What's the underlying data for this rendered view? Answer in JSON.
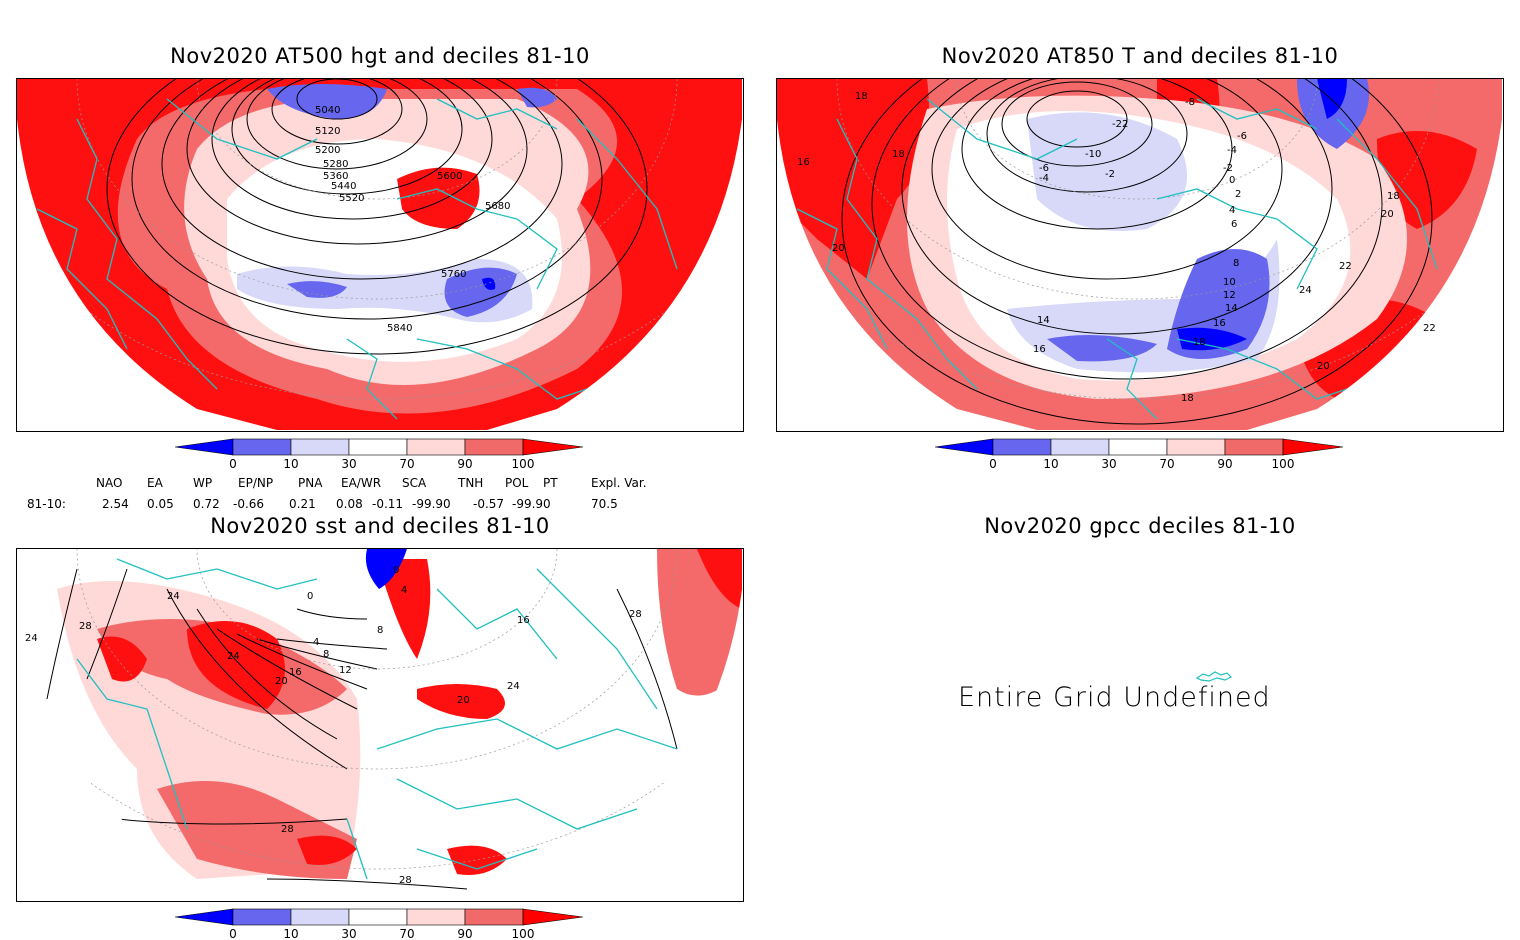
{
  "panels": [
    {
      "title": "Nov2020 AT500 hgt and deciles 81-10",
      "contour_labels": [
        "5040",
        "5120",
        "5200",
        "5280",
        "5360",
        "5440",
        "5520",
        "5600",
        "5680",
        "5760",
        "5840"
      ]
    },
    {
      "title": "Nov2020 AT850 T and deciles 81-10",
      "contour_labels": [
        "18",
        "18",
        "16",
        "20",
        "-22",
        "-10",
        "-6",
        "-4",
        "-2",
        "-8",
        "-6",
        "-4",
        "-2",
        "0",
        "2",
        "4",
        "6",
        "8",
        "10",
        "12",
        "14",
        "16",
        "18",
        "14",
        "16",
        "18",
        "20",
        "22",
        "24",
        "22",
        "20",
        "18"
      ]
    },
    {
      "title": "Nov2020 sst and deciles 81-10",
      "contour_labels": [
        "24",
        "24",
        "28",
        "24",
        "20",
        "16",
        "12",
        "8",
        "4",
        "0",
        "0",
        "4",
        "8",
        "16",
        "20",
        "24",
        "28",
        "28",
        "28"
      ]
    },
    {
      "title": "Nov2020 gpcc deciles 81-10",
      "message": "Entire Grid Undefined"
    }
  ],
  "colorbar": {
    "ticks": [
      "0",
      "10",
      "30",
      "70",
      "90",
      "100"
    ],
    "colors": [
      "#0000ff",
      "#6666ee",
      "#d8d8f8",
      "#ffffff",
      "#ffd8d8",
      "#f06a6a",
      "#ff0000"
    ]
  },
  "indices": {
    "row_label": "81-10:",
    "headers": [
      "NAO",
      "EA",
      "WP",
      "EP/NP",
      "PNA",
      "EA/WR",
      "SCA",
      "TNH",
      "POL",
      "PT",
      "Expl. Var."
    ],
    "values": [
      "2.54",
      "0.05",
      "0.72",
      "-0.66",
      "0.21",
      "0.08",
      "-0.11",
      "-99.90",
      "-0.57",
      "-99.90",
      "70.5"
    ]
  }
}
